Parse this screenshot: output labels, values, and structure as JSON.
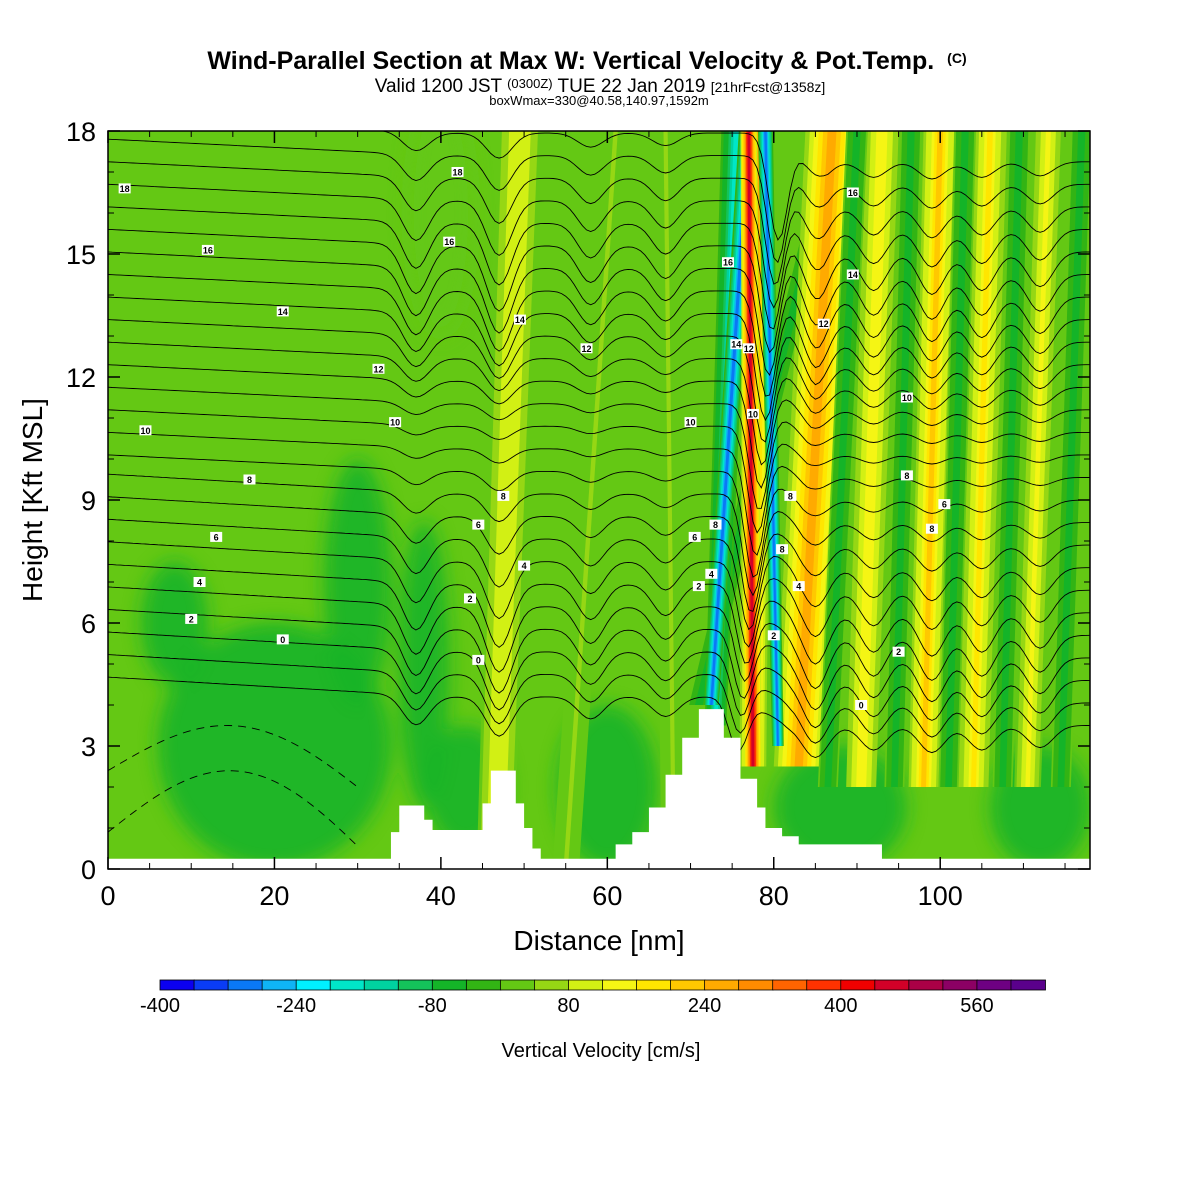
{
  "title": {
    "main": "Wind-Parallel Section at Max W: Vertical Velocity & Pot.Temp.",
    "copyright": "(C)",
    "line2_a": "Valid 1200 JST",
    "line2_b": "(0300Z)",
    "line2_c": "TUE 22 Jan 2019",
    "line2_d": "[21hrFcst@1358z]",
    "line3": "boxWmax=330@40.58,140.97,1592m"
  },
  "chart_data": {
    "type": "heatmap",
    "xlabel": "Distance [nm]",
    "ylabel": "Height [Kft MSL]",
    "xlim": [
      0,
      118
    ],
    "ylim": [
      0,
      18
    ],
    "x_ticks": [
      "0",
      "20",
      "40",
      "60",
      "80",
      "100"
    ],
    "x_tick_values": [
      0,
      20,
      40,
      60,
      80,
      100
    ],
    "y_ticks": [
      "0",
      "3",
      "6",
      "9",
      "12",
      "15",
      "18"
    ],
    "y_tick_values": [
      0,
      3,
      6,
      9,
      12,
      15,
      18
    ],
    "colorbar": {
      "label": "Vertical Velocity [cm/s]",
      "ticks": [
        "-400",
        "-240",
        "-80",
        "80",
        "240",
        "400",
        "560"
      ],
      "tick_values": [
        -400,
        -240,
        -80,
        80,
        240,
        400,
        560
      ],
      "range": [
        -400,
        640
      ],
      "step": 40,
      "colors": [
        "#0b00f0",
        "#0a3cf5",
        "#0a78f5",
        "#0fb4f5",
        "#00f0ff",
        "#00e6c8",
        "#00d2a0",
        "#14c35a",
        "#14b428",
        "#32b414",
        "#64c814",
        "#96d714",
        "#d2f014",
        "#f5f514",
        "#ffe600",
        "#ffc800",
        "#ffaa00",
        "#ff8c00",
        "#ff6400",
        "#ff3200",
        "#f00000",
        "#d20028",
        "#aa0046",
        "#8c0064",
        "#6e0082",
        "#5a008c"
      ]
    },
    "terrain": [
      [
        0,
        0.25
      ],
      [
        33,
        0.25
      ],
      [
        34,
        0.9
      ],
      [
        35,
        1.55
      ],
      [
        37,
        1.55
      ],
      [
        38,
        1.2
      ],
      [
        39,
        0.95
      ],
      [
        44,
        0.95
      ],
      [
        45,
        1.6
      ],
      [
        46,
        2.4
      ],
      [
        48,
        2.4
      ],
      [
        49,
        1.6
      ],
      [
        50,
        1.0
      ],
      [
        51,
        0.5
      ],
      [
        52,
        0.25
      ],
      [
        60,
        0.25
      ],
      [
        61,
        0.6
      ],
      [
        63,
        0.9
      ],
      [
        65,
        1.5
      ],
      [
        67,
        2.3
      ],
      [
        69,
        3.2
      ],
      [
        71,
        3.9
      ],
      [
        73,
        3.9
      ],
      [
        74,
        3.2
      ],
      [
        76,
        2.2
      ],
      [
        78,
        1.5
      ],
      [
        79,
        1.0
      ],
      [
        81,
        0.8
      ],
      [
        83,
        0.6
      ],
      [
        92,
        0.6
      ],
      [
        93,
        0.25
      ],
      [
        118,
        0.25
      ]
    ],
    "isentrope_labels": [
      {
        "text": "18",
        "x": 2,
        "y": 16.6
      },
      {
        "text": "16",
        "x": 12,
        "y": 15.1
      },
      {
        "text": "14",
        "x": 21,
        "y": 13.6
      },
      {
        "text": "12",
        "x": 32.5,
        "y": 12.2
      },
      {
        "text": "10",
        "x": 4.5,
        "y": 10.7
      },
      {
        "text": "8",
        "x": 17,
        "y": 9.5
      },
      {
        "text": "6",
        "x": 13,
        "y": 8.1
      },
      {
        "text": "4",
        "x": 11,
        "y": 7.0
      },
      {
        "text": "2",
        "x": 10,
        "y": 6.1
      },
      {
        "text": "0",
        "x": 21,
        "y": 5.6
      },
      {
        "text": "18",
        "x": 42,
        "y": 17.0
      },
      {
        "text": "16",
        "x": 41,
        "y": 15.3
      },
      {
        "text": "14",
        "x": 49.5,
        "y": 13.4
      },
      {
        "text": "12",
        "x": 57.5,
        "y": 12.7
      },
      {
        "text": "10",
        "x": 34.5,
        "y": 10.9
      },
      {
        "text": "8",
        "x": 47.5,
        "y": 9.1
      },
      {
        "text": "6",
        "x": 44.5,
        "y": 8.4
      },
      {
        "text": "4",
        "x": 50,
        "y": 7.4
      },
      {
        "text": "2",
        "x": 43.5,
        "y": 6.6
      },
      {
        "text": "0",
        "x": 44.5,
        "y": 5.1
      },
      {
        "text": "16",
        "x": 74.5,
        "y": 14.8
      },
      {
        "text": "14",
        "x": 75.5,
        "y": 12.8
      },
      {
        "text": "12",
        "x": 77,
        "y": 12.7
      },
      {
        "text": "10",
        "x": 70,
        "y": 10.9
      },
      {
        "text": "10",
        "x": 77.5,
        "y": 11.1
      },
      {
        "text": "8",
        "x": 73,
        "y": 8.4
      },
      {
        "text": "6",
        "x": 70.5,
        "y": 8.1
      },
      {
        "text": "4",
        "x": 72.5,
        "y": 7.2
      },
      {
        "text": "2",
        "x": 71,
        "y": 6.9
      },
      {
        "text": "8",
        "x": 82,
        "y": 9.1
      },
      {
        "text": "8",
        "x": 81,
        "y": 7.8
      },
      {
        "text": "4",
        "x": 83,
        "y": 6.9
      },
      {
        "text": "2",
        "x": 80,
        "y": 5.7
      },
      {
        "text": "16",
        "x": 89.5,
        "y": 16.5
      },
      {
        "text": "14",
        "x": 89.5,
        "y": 14.5
      },
      {
        "text": "12",
        "x": 86,
        "y": 13.3
      },
      {
        "text": "10",
        "x": 96,
        "y": 11.5
      },
      {
        "text": "8",
        "x": 96,
        "y": 9.6
      },
      {
        "text": "6",
        "x": 100.5,
        "y": 8.9
      },
      {
        "text": "8",
        "x": 99,
        "y": 8.3
      },
      {
        "text": "2",
        "x": 95,
        "y": 5.3
      },
      {
        "text": "0",
        "x": 90.5,
        "y": 4.0
      }
    ]
  }
}
